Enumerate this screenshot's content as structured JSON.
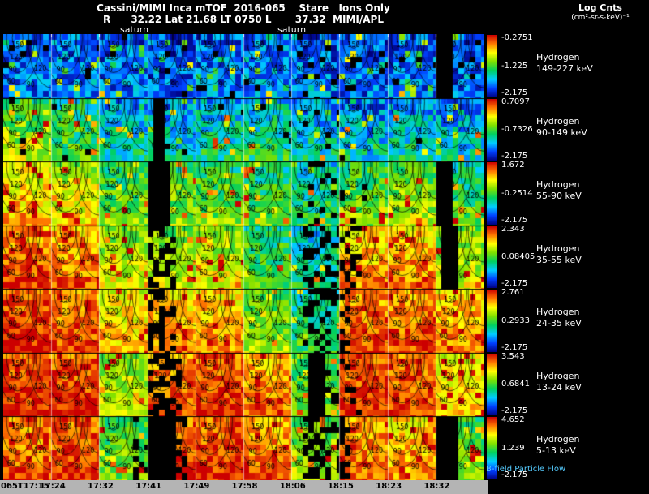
{
  "colors": {
    "background": "#000000",
    "axis_bar": "#b4b4b4",
    "text": "#ffffff",
    "bfield_label": "#55ccff"
  },
  "header": {
    "line1": "Cassini/MIMI Inca mTOF  2016-065    Stare   Ions Only",
    "line2": "R      32.22 Lat 21.68 LT 0750 L       37.32  MIMI/APL",
    "units_line1": "Log Cnts",
    "units_line2": "(cm²-sr-s-keV)⁻¹",
    "saturn_left": "saturn",
    "saturn_right": "saturn"
  },
  "footer": {
    "bfield_label": "B-field Particle Flow"
  },
  "chart_data": {
    "type": "heatmap",
    "title": "Cassini/MIMI Inca mTOF 2016-065 Stare Ions Only",
    "colorbar_units": "Log Cnts (cm²-sr-s-keV)⁻¹",
    "x_ticks": [
      "065T17:15",
      "17:24",
      "17:32",
      "17:41",
      "17:49",
      "17:58",
      "18:06",
      "18:15",
      "18:23",
      "18:32"
    ],
    "contour_levels": [
      60,
      90,
      120,
      150
    ],
    "colormap": [
      "#000080",
      "#0040ff",
      "#00ccff",
      "#00d060",
      "#7fe000",
      "#ffff00",
      "#ff7800",
      "#cc0000"
    ],
    "rows": [
      {
        "species": "Hydrogen",
        "energy": "149-227 keV",
        "scale_max": "-0.2751",
        "scale_mid": "-1.225",
        "scale_min": "-2.175",
        "panel_intensity": [
          0.16,
          0.2,
          0.17,
          0.14,
          0.18,
          0.2,
          0.17,
          0.14,
          0.17,
          0.15
        ],
        "noise": 0.3,
        "grad": 0.05,
        "gaps": [
          [
            0.9,
            0.935
          ]
        ],
        "dropouts": [
          {
            "r": [
              0,
              1
            ],
            "p": 0.05
          }
        ]
      },
      {
        "species": "Hydrogen",
        "energy": "90-149 keV",
        "scale_max": "0.7097",
        "scale_mid": "-0.7326",
        "scale_min": "-2.175",
        "panel_intensity": [
          0.55,
          0.45,
          0.3,
          0.28,
          0.34,
          0.37,
          0.3,
          0.26,
          0.3,
          0.28
        ],
        "noise": 0.3,
        "grad": 0.18,
        "gaps": [
          [
            0.302,
            0.332
          ]
        ],
        "dropouts": [
          {
            "r": [
              0,
              1
            ],
            "p": 0.03
          }
        ]
      },
      {
        "species": "Hydrogen",
        "energy": "55-90 keV",
        "scale_max": "1.672",
        "scale_mid": "-0.2514",
        "scale_min": "-2.175",
        "panel_intensity": [
          0.72,
          0.65,
          0.5,
          0.52,
          0.5,
          0.45,
          0.38,
          0.5,
          0.55,
          0.45
        ],
        "noise": 0.26,
        "grad": 0.18,
        "gaps": [
          [
            0.3,
            0.34
          ],
          [
            0.9,
            0.935
          ]
        ],
        "dropouts": [
          {
            "r": [
              0.6,
              0.75
            ],
            "p": 0.15
          }
        ]
      },
      {
        "species": "Hydrogen",
        "energy": "35-55 keV",
        "scale_max": "2.343",
        "scale_mid": "0.08405",
        "scale_min": "-2.175",
        "panel_intensity": [
          0.88,
          0.82,
          0.62,
          0.6,
          0.62,
          0.45,
          0.35,
          0.78,
          0.8,
          0.6
        ],
        "noise": 0.24,
        "grad": 0.15,
        "gaps": [
          [
            0.905,
            0.94
          ]
        ],
        "dropouts": [
          {
            "r": [
              0.3,
              0.35
            ],
            "p": 0.5
          },
          {
            "r": [
              0.62,
              0.74
            ],
            "p": 0.3
          }
        ]
      },
      {
        "species": "Hydrogen",
        "energy": "24-35 keV",
        "scale_max": "2.761",
        "scale_mid": "0.2933",
        "scale_min": "-2.175",
        "panel_intensity": [
          0.92,
          0.86,
          0.72,
          0.78,
          0.78,
          0.55,
          0.4,
          0.86,
          0.86,
          0.8
        ],
        "noise": 0.22,
        "grad": 0.12,
        "gaps": [],
        "dropouts": [
          {
            "r": [
              0.3,
              0.35
            ],
            "p": 0.5
          },
          {
            "r": [
              0.62,
              0.72
            ],
            "p": 0.35
          }
        ]
      },
      {
        "species": "Hydrogen",
        "energy": "13-24 keV",
        "scale_max": "3.543",
        "scale_mid": "0.6841",
        "scale_min": "-2.175",
        "panel_intensity": [
          0.92,
          0.9,
          0.6,
          0.86,
          0.9,
          0.82,
          0.5,
          0.9,
          0.88,
          0.72
        ],
        "noise": 0.2,
        "grad": 0.1,
        "gaps": [
          [
            0.63,
            0.66
          ]
        ],
        "dropouts": [
          {
            "r": [
              0.3,
              0.36
            ],
            "p": 0.5
          },
          {
            "r": [
              0.66,
              0.74
            ],
            "p": 0.3
          }
        ]
      },
      {
        "species": "Hydrogen",
        "energy": "5-13 keV",
        "scale_max": "4.652",
        "scale_mid": "1.239",
        "scale_min": "-2.175",
        "panel_intensity": [
          0.86,
          0.9,
          0.5,
          0.9,
          0.9,
          0.84,
          0.55,
          0.84,
          0.78,
          0.5
        ],
        "noise": 0.22,
        "grad": 0.1,
        "gaps": [
          [
            0.3,
            0.35
          ],
          [
            0.9,
            0.94
          ]
        ],
        "dropouts": [
          {
            "r": [
              0.62,
              0.72
            ],
            "p": 0.4
          },
          {
            "r": [
              0.27,
              0.38
            ],
            "p": 0.4
          }
        ]
      }
    ]
  }
}
